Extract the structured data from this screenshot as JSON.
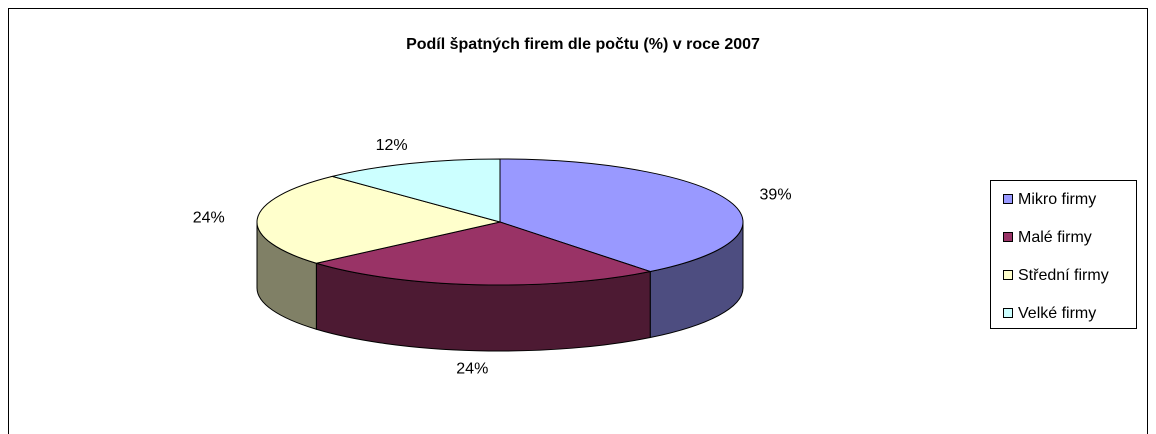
{
  "chart_data": {
    "type": "pie3d",
    "title": "Podíl špatných firem dle počtu (%) v roce 2007",
    "categories": [
      "Mikro firmy",
      "Malé firmy",
      "Střední firmy",
      "Velké firmy"
    ],
    "values": [
      39,
      24,
      24,
      12
    ],
    "value_labels": [
      "39%",
      "24%",
      "24%",
      "12%"
    ],
    "colors": [
      "#9999ff",
      "#993366",
      "#ffffcc",
      "#ccffff"
    ],
    "legend": "right"
  }
}
